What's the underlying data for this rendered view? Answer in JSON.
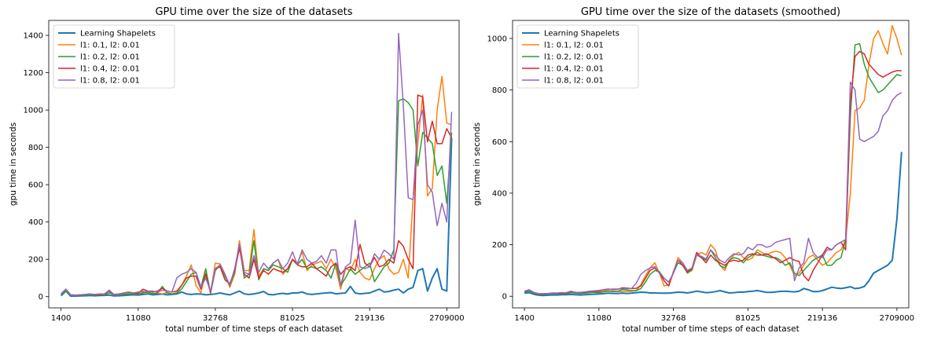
{
  "colors": {
    "Learning Shapelets": "#1f77b4",
    "l1: 0.1, l2: 0.01": "#ff7f0e",
    "l1: 0.2, l2: 0.01": "#2ca02c",
    "l1: 0.4, l2: 0.01": "#d62728",
    "l1: 0.8, l2: 0.01": "#9467bd"
  },
  "chart_data": [
    {
      "type": "line",
      "title": "GPU time over the size of the datasets",
      "xlabel": "total number of time steps of each dataset",
      "ylabel": "gpu time in seconds",
      "x_tick_labels": [
        "1400",
        "11080",
        "32768",
        "81025",
        "219136",
        "2709000"
      ],
      "y_ticks": [
        0,
        200,
        400,
        600,
        800,
        1000,
        1200,
        1400
      ],
      "ylim": [
        -60,
        1480
      ],
      "x_index_range": [
        0,
        80
      ],
      "x_tick_index": [
        0,
        16,
        32,
        48,
        64,
        80
      ],
      "legend_position": "upper left",
      "grid": false,
      "series": [
        {
          "name": "Learning Shapelets",
          "values": [
            5,
            30,
            3,
            3,
            4,
            5,
            6,
            5,
            6,
            7,
            8,
            4,
            5,
            6,
            8,
            10,
            8,
            12,
            15,
            10,
            12,
            14,
            10,
            12,
            15,
            25,
            15,
            12,
            15,
            14,
            10,
            12,
            15,
            20,
            14,
            10,
            20,
            30,
            15,
            12,
            15,
            20,
            28,
            12,
            10,
            15,
            18,
            14,
            20,
            20,
            25,
            15,
            12,
            15,
            18,
            20,
            22,
            15,
            18,
            20,
            55,
            20,
            15,
            18,
            20,
            30,
            40,
            25,
            28,
            35,
            40,
            20,
            40,
            50,
            140,
            150,
            30,
            100,
            150,
            40,
            30,
            850
          ]
        },
        {
          "name": "l1: 0.1, l2: 0.01",
          "values": [
            10,
            35,
            8,
            6,
            8,
            10,
            12,
            12,
            14,
            10,
            20,
            12,
            10,
            15,
            20,
            15,
            18,
            30,
            20,
            18,
            20,
            15,
            22,
            15,
            20,
            60,
            110,
            170,
            60,
            20,
            130,
            20,
            180,
            175,
            120,
            50,
            120,
            300,
            140,
            140,
            360,
            110,
            150,
            140,
            180,
            200,
            120,
            150,
            200,
            180,
            240,
            140,
            170,
            180,
            190,
            150,
            200,
            150,
            40,
            150,
            140,
            200,
            130,
            100,
            90,
            150,
            200,
            220,
            150,
            120,
            130,
            200,
            100,
            520,
            820,
            1080,
            540,
            580,
            1000,
            1180,
            930,
            920
          ]
        },
        {
          "name": "l1: 0.2, l2: 0.01",
          "values": [
            10,
            30,
            8,
            6,
            8,
            10,
            10,
            8,
            10,
            10,
            20,
            10,
            10,
            12,
            15,
            15,
            12,
            20,
            25,
            15,
            20,
            55,
            20,
            15,
            20,
            40,
            80,
            120,
            130,
            50,
            150,
            20,
            140,
            170,
            110,
            60,
            130,
            280,
            100,
            120,
            300,
            90,
            150,
            140,
            170,
            160,
            150,
            130,
            200,
            170,
            200,
            150,
            160,
            150,
            160,
            140,
            100,
            180,
            60,
            100,
            150,
            120,
            140,
            160,
            180,
            80,
            120,
            160,
            180,
            250,
            1050,
            1060,
            1040,
            1000,
            700,
            880,
            850,
            820,
            650,
            700,
            500,
            880
          ]
        },
        {
          "name": "l1: 0.4, l2: 0.01",
          "values": [
            15,
            40,
            10,
            8,
            10,
            12,
            15,
            10,
            12,
            15,
            30,
            12,
            15,
            20,
            25,
            20,
            18,
            40,
            30,
            25,
            30,
            45,
            30,
            25,
            30,
            60,
            100,
            110,
            110,
            40,
            120,
            20,
            150,
            160,
            90,
            70,
            140,
            260,
            120,
            100,
            200,
            100,
            140,
            120,
            150,
            140,
            130,
            150,
            200,
            170,
            160,
            160,
            180,
            150,
            130,
            110,
            160,
            180,
            120,
            150,
            160,
            140,
            280,
            180,
            160,
            210,
            160,
            170,
            200,
            180,
            300,
            270,
            200,
            150,
            1080,
            1070,
            830,
            940,
            820,
            820,
            900,
            850
          ]
        },
        {
          "name": "l1: 0.8, l2: 0.01",
          "values": [
            15,
            40,
            10,
            8,
            10,
            12,
            15,
            12,
            15,
            15,
            35,
            10,
            12,
            20,
            25,
            20,
            25,
            25,
            30,
            30,
            25,
            35,
            30,
            25,
            100,
            120,
            130,
            150,
            130,
            50,
            100,
            30,
            150,
            170,
            120,
            60,
            150,
            280,
            130,
            120,
            220,
            130,
            180,
            150,
            180,
            200,
            150,
            180,
            240,
            170,
            250,
            200,
            180,
            190,
            220,
            180,
            250,
            250,
            60,
            160,
            180,
            410,
            160,
            150,
            160,
            230,
            200,
            250,
            230,
            200,
            1410,
            1020,
            530,
            520,
            920,
            1000,
            600,
            560,
            380,
            500,
            400,
            990
          ]
        }
      ]
    },
    {
      "type": "line",
      "title": "GPU time over the size of the datasets (smoothed)",
      "xlabel": "total number of time steps of each dataset",
      "ylabel": "gpu time in seconds",
      "x_tick_labels": [
        "1400",
        "11080",
        "32768",
        "81025",
        "219136",
        "2709000"
      ],
      "y_ticks": [
        0,
        200,
        400,
        600,
        800,
        1000
      ],
      "ylim": [
        -45,
        1070
      ],
      "x_index_range": [
        0,
        80
      ],
      "x_tick_index": [
        0,
        16,
        32,
        48,
        64,
        80
      ],
      "legend_position": "upper left",
      "grid": false,
      "series": [
        {
          "name": "Learning Shapelets",
          "values": [
            12,
            14,
            8,
            4,
            3,
            4,
            5,
            5,
            6,
            6,
            7,
            6,
            5,
            6,
            7,
            8,
            9,
            10,
            12,
            11,
            11,
            12,
            11,
            12,
            14,
            16,
            15,
            13,
            13,
            12,
            12,
            12,
            14,
            16,
            15,
            13,
            16,
            20,
            17,
            14,
            15,
            18,
            22,
            17,
            13,
            14,
            16,
            16,
            18,
            20,
            22,
            19,
            15,
            15,
            17,
            19,
            20,
            18,
            17,
            20,
            30,
            25,
            18,
            18,
            22,
            28,
            35,
            32,
            30,
            33,
            37,
            30,
            32,
            38,
            60,
            90,
            100,
            110,
            120,
            140,
            300,
            560
          ]
        },
        {
          "name": "l1: 0.1, l2: 0.01",
          "values": [
            15,
            22,
            12,
            8,
            7,
            9,
            11,
            12,
            13,
            12,
            15,
            13,
            12,
            13,
            16,
            16,
            17,
            22,
            22,
            20,
            19,
            18,
            20,
            19,
            22,
            45,
            80,
            110,
            130,
            90,
            40,
            45,
            90,
            150,
            130,
            90,
            100,
            160,
            170,
            160,
            200,
            180,
            120,
            100,
            140,
            160,
            170,
            150,
            140,
            150,
            180,
            170,
            160,
            170,
            175,
            170,
            150,
            120,
            80,
            90,
            120,
            150,
            160,
            140,
            120,
            130,
            150,
            170,
            180,
            220,
            400,
            720,
            730,
            760,
            900,
            1000,
            1030,
            980,
            940,
            1050,
            1000,
            935
          ]
        },
        {
          "name": "l1: 0.2, l2: 0.01",
          "values": [
            15,
            20,
            12,
            8,
            7,
            9,
            10,
            10,
            10,
            10,
            14,
            12,
            11,
            12,
            14,
            15,
            14,
            17,
            20,
            18,
            19,
            26,
            25,
            22,
            22,
            30,
            55,
            85,
            100,
            95,
            70,
            55,
            90,
            130,
            120,
            90,
            105,
            160,
            150,
            140,
            180,
            150,
            120,
            110,
            140,
            150,
            145,
            130,
            150,
            160,
            170,
            160,
            155,
            150,
            150,
            140,
            120,
            130,
            90,
            80,
            100,
            120,
            140,
            150,
            160,
            120,
            120,
            140,
            150,
            220,
            700,
            975,
            980,
            900,
            850,
            820,
            790,
            800,
            820,
            840,
            860,
            855
          ]
        },
        {
          "name": "l1: 0.4, l2: 0.01",
          "values": [
            18,
            25,
            15,
            10,
            9,
            10,
            12,
            12,
            12,
            13,
            18,
            15,
            14,
            16,
            19,
            20,
            20,
            26,
            28,
            26,
            27,
            33,
            32,
            30,
            31,
            40,
            70,
            100,
            110,
            90,
            60,
            40,
            95,
            140,
            120,
            95,
            110,
            170,
            150,
            130,
            160,
            140,
            130,
            120,
            135,
            140,
            135,
            140,
            160,
            165,
            160,
            160,
            165,
            155,
            145,
            130,
            140,
            150,
            140,
            135,
            80,
            60,
            100,
            130,
            160,
            190,
            180,
            200,
            210,
            180,
            750,
            930,
            950,
            940,
            900,
            880,
            860,
            850,
            860,
            870,
            875,
            875
          ]
        },
        {
          "name": "l1: 0.8, l2: 0.01",
          "values": [
            20,
            25,
            15,
            10,
            10,
            11,
            13,
            13,
            14,
            14,
            20,
            15,
            15,
            17,
            20,
            21,
            23,
            25,
            27,
            28,
            28,
            30,
            31,
            30,
            50,
            85,
            100,
            110,
            115,
            90,
            70,
            55,
            90,
            140,
            130,
            100,
            110,
            160,
            155,
            145,
            180,
            160,
            140,
            130,
            150,
            165,
            160,
            165,
            190,
            180,
            200,
            200,
            190,
            195,
            210,
            215,
            220,
            225,
            60,
            110,
            130,
            225,
            170,
            150,
            150,
            180,
            180,
            200,
            210,
            220,
            830,
            800,
            610,
            600,
            610,
            620,
            640,
            700,
            720,
            760,
            780,
            790
          ]
        }
      ]
    }
  ],
  "legend_labels": [
    "Learning Shapelets",
    "l1: 0.1, l2: 0.01",
    "l1: 0.2, l2: 0.01",
    "l1: 0.4, l2: 0.01",
    "l1: 0.8, l2: 0.01"
  ]
}
